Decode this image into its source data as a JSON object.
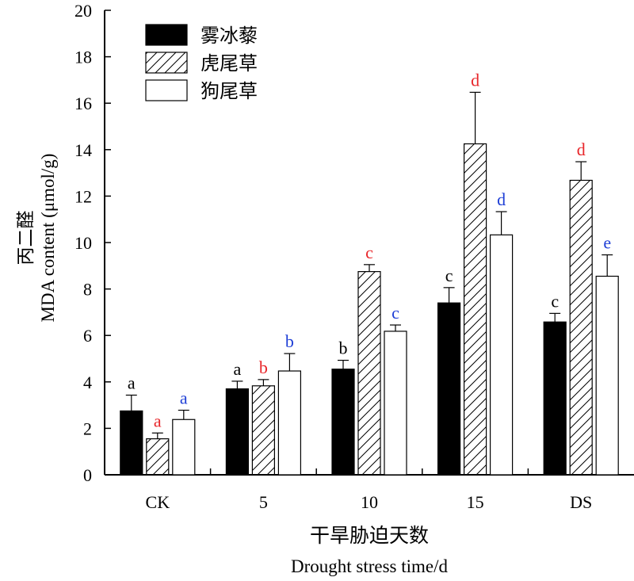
{
  "chart_data": {
    "type": "bar",
    "categories": [
      "CK",
      "5",
      "10",
      "15",
      "DS"
    ],
    "series": [
      {
        "name": "雾冰藜",
        "fill": "solid-black",
        "values": [
          2.75,
          3.7,
          4.55,
          7.4,
          6.58
        ],
        "errors": [
          0.68,
          0.33,
          0.38,
          0.66,
          0.37
        ],
        "letters": [
          "a",
          "a",
          "b",
          "c",
          "c"
        ],
        "letter_color": "#000000"
      },
      {
        "name": "虎尾草",
        "fill": "hatched",
        "values": [
          1.55,
          3.83,
          8.75,
          14.25,
          12.68
        ],
        "errors": [
          0.25,
          0.27,
          0.3,
          2.22,
          0.8
        ],
        "letters": [
          "a",
          "b",
          "c",
          "d",
          "d"
        ],
        "letter_color": "#e8262a"
      },
      {
        "name": "狗尾草",
        "fill": "white",
        "values": [
          2.38,
          4.47,
          6.18,
          10.33,
          8.55
        ],
        "errors": [
          0.4,
          0.75,
          0.27,
          1.0,
          0.92
        ],
        "letters": [
          "a",
          "b",
          "c",
          "d",
          "e"
        ],
        "letter_color": "#1f3fd6"
      }
    ],
    "ylabel_cn": "丙二醛",
    "ylabel": "MDA content (μmol/g)",
    "xlabel_cn": "干旱胁迫天数",
    "xlabel": "Drought stress time/d",
    "ylim": [
      0,
      20
    ],
    "yticks": [
      0,
      2,
      4,
      6,
      8,
      10,
      12,
      14,
      16,
      18,
      20
    ],
    "grid": false,
    "legend_position": "top-left"
  }
}
